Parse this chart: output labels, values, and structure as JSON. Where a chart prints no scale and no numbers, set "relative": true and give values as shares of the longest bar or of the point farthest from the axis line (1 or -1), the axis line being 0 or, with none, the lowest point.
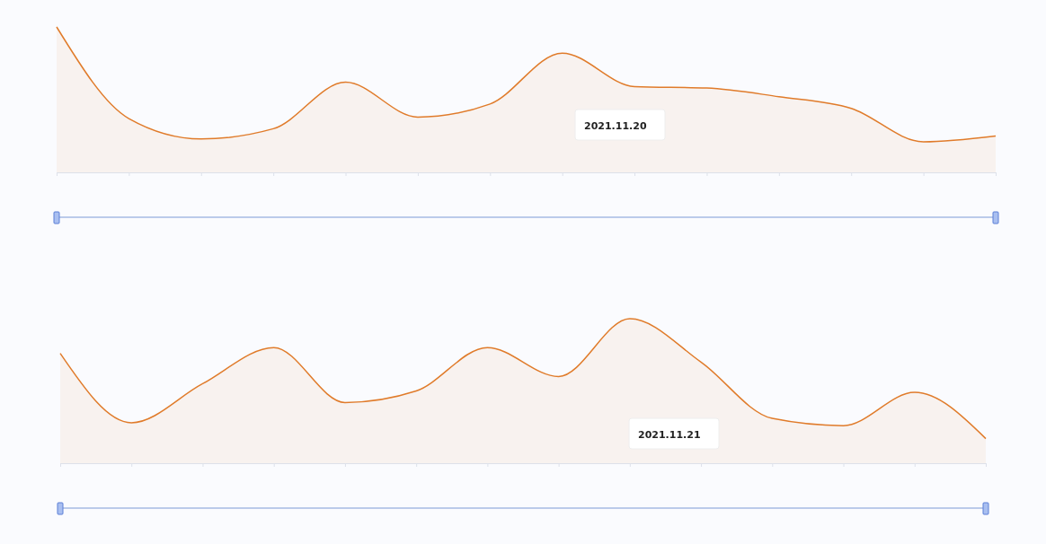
{
  "chart_data": [
    {
      "type": "area",
      "relative": true,
      "categories": [
        null,
        null,
        null,
        null,
        null,
        null,
        null,
        null,
        null,
        null,
        null,
        null,
        null,
        null
      ],
      "series": [
        {
          "color": "#e07b2a",
          "values": [
            1,
            0.37,
            0.23,
            0.3,
            0.62,
            0.38,
            0.47,
            0.82,
            0.59,
            0.58,
            0.52,
            0.44,
            0.21,
            0.25
          ]
        }
      ],
      "annotations": [
        "2021.11.20"
      ]
    },
    {
      "type": "area",
      "relative": true,
      "categories": [
        null,
        null,
        null,
        null,
        null,
        null,
        null,
        null,
        null,
        null,
        null,
        null,
        null,
        null
      ],
      "series": [
        {
          "color": "#e07b2a",
          "values": [
            0.76,
            0.28,
            0.55,
            0.8,
            0.42,
            0.5,
            0.8,
            0.6,
            1,
            0.7,
            0.31,
            0.26,
            0.49,
            0.17
          ]
        }
      ],
      "annotations": [
        "2021.11.21"
      ]
    }
  ]
}
